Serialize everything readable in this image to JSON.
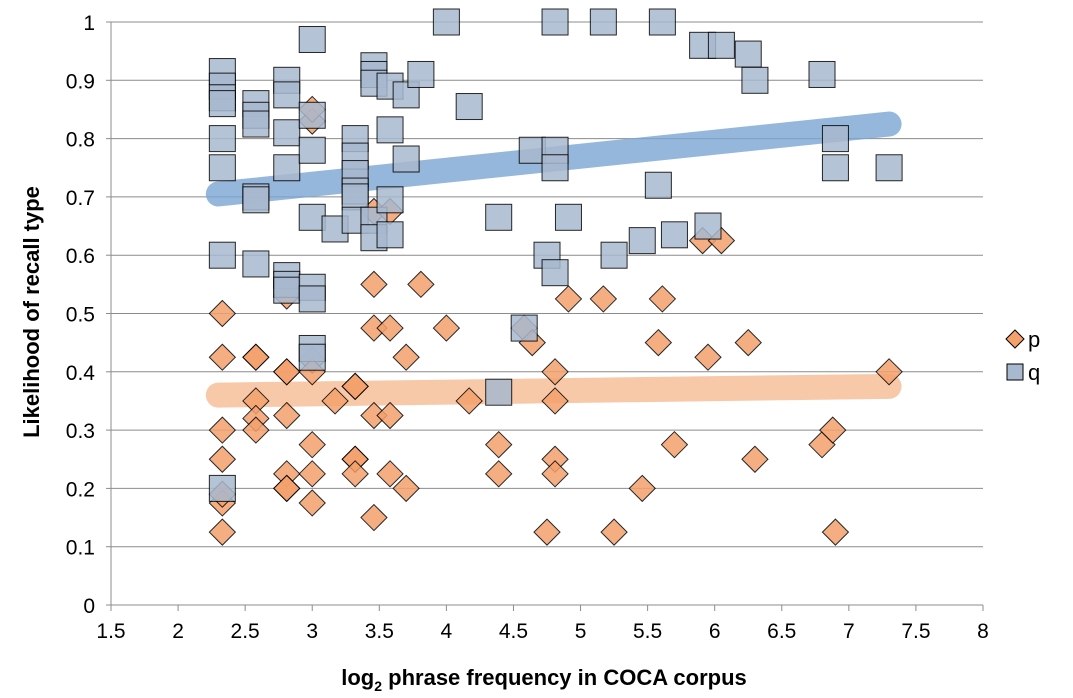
{
  "chart_data": {
    "type": "scatter",
    "title": "",
    "xlabel_main": "log",
    "xlabel_sub": "2",
    "xlabel_rest": " phrase frequency in COCA corpus",
    "ylabel": "Likelihood of recall type",
    "xlim": [
      1.5,
      8
    ],
    "ylim": [
      0,
      1
    ],
    "xticks": [
      1.5,
      2,
      2.5,
      3,
      3.5,
      4,
      4.5,
      5,
      5.5,
      6,
      6.5,
      7,
      7.5,
      8
    ],
    "yticks": [
      0,
      0.1,
      0.2,
      0.3,
      0.4,
      0.5,
      0.6,
      0.7,
      0.8,
      0.9,
      1
    ],
    "grid": "horizontal",
    "legend_position": "right",
    "series": [
      {
        "name": "p",
        "marker": "diamond",
        "color": "#f4a16c",
        "stroke": "#000000",
        "trend": {
          "x": [
            2.3,
            7.3
          ],
          "y": [
            0.36,
            0.375
          ],
          "color": "#f7c09a"
        },
        "points": [
          [
            2.33,
            0.5
          ],
          [
            2.33,
            0.425
          ],
          [
            2.33,
            0.3
          ],
          [
            2.33,
            0.25
          ],
          [
            2.33,
            0.175
          ],
          [
            2.33,
            0.125
          ],
          [
            2.33,
            0.19
          ],
          [
            2.58,
            0.425
          ],
          [
            2.58,
            0.425
          ],
          [
            2.58,
            0.35
          ],
          [
            2.58,
            0.32
          ],
          [
            2.58,
            0.3
          ],
          [
            2.81,
            0.53
          ],
          [
            2.81,
            0.4
          ],
          [
            2.81,
            0.4
          ],
          [
            2.81,
            0.325
          ],
          [
            2.81,
            0.225
          ],
          [
            2.81,
            0.2
          ],
          [
            2.81,
            0.2
          ],
          [
            3.0,
            0.83
          ],
          [
            3.0,
            0.85
          ],
          [
            3.0,
            0.42
          ],
          [
            3.0,
            0.4
          ],
          [
            3.0,
            0.275
          ],
          [
            3.0,
            0.225
          ],
          [
            3.0,
            0.175
          ],
          [
            3.17,
            0.35
          ],
          [
            3.32,
            0.375
          ],
          [
            3.32,
            0.375
          ],
          [
            3.32,
            0.25
          ],
          [
            3.32,
            0.25
          ],
          [
            3.32,
            0.225
          ],
          [
            3.46,
            0.675
          ],
          [
            3.46,
            0.55
          ],
          [
            3.46,
            0.475
          ],
          [
            3.46,
            0.325
          ],
          [
            3.46,
            0.15
          ],
          [
            3.58,
            0.675
          ],
          [
            3.58,
            0.475
          ],
          [
            3.58,
            0.325
          ],
          [
            3.58,
            0.225
          ],
          [
            3.7,
            0.425
          ],
          [
            3.7,
            0.2
          ],
          [
            3.81,
            0.55
          ],
          [
            4.0,
            0.475
          ],
          [
            4.17,
            0.35
          ],
          [
            4.39,
            0.275
          ],
          [
            4.39,
            0.225
          ],
          [
            4.58,
            0.475
          ],
          [
            4.64,
            0.45
          ],
          [
            4.75,
            0.125
          ],
          [
            4.81,
            0.4
          ],
          [
            4.81,
            0.35
          ],
          [
            4.81,
            0.25
          ],
          [
            4.81,
            0.225
          ],
          [
            4.91,
            0.525
          ],
          [
            5.17,
            0.525
          ],
          [
            5.25,
            0.125
          ],
          [
            5.46,
            0.2
          ],
          [
            5.58,
            0.45
          ],
          [
            5.61,
            0.525
          ],
          [
            5.7,
            0.275
          ],
          [
            5.91,
            0.625
          ],
          [
            5.95,
            0.425
          ],
          [
            6.05,
            0.625
          ],
          [
            6.25,
            0.45
          ],
          [
            6.3,
            0.25
          ],
          [
            6.8,
            0.275
          ],
          [
            6.88,
            0.3
          ],
          [
            6.9,
            0.125
          ],
          [
            7.3,
            0.4
          ]
        ]
      },
      {
        "name": "q",
        "marker": "square",
        "color": "#a8b9cf",
        "stroke": "#000000",
        "trend": {
          "x": [
            2.3,
            7.3
          ],
          "y": [
            0.705,
            0.825
          ],
          "color": "#7ba6d4"
        },
        "points": [
          [
            2.33,
            0.915
          ],
          [
            2.33,
            0.89
          ],
          [
            2.33,
            0.87
          ],
          [
            2.33,
            0.86
          ],
          [
            2.33,
            0.8
          ],
          [
            2.33,
            0.75
          ],
          [
            2.33,
            0.6
          ],
          [
            2.33,
            0.2
          ],
          [
            2.58,
            0.86
          ],
          [
            2.58,
            0.84
          ],
          [
            2.58,
            0.825
          ],
          [
            2.58,
            0.7
          ],
          [
            2.58,
            0.695
          ],
          [
            2.58,
            0.585
          ],
          [
            2.81,
            0.9
          ],
          [
            2.81,
            0.875
          ],
          [
            2.81,
            0.81
          ],
          [
            2.81,
            0.75
          ],
          [
            2.81,
            0.565
          ],
          [
            2.81,
            0.55
          ],
          [
            2.81,
            0.54
          ],
          [
            3.0,
            0.97
          ],
          [
            3.0,
            0.84
          ],
          [
            3.0,
            0.78
          ],
          [
            3.0,
            0.665
          ],
          [
            3.0,
            0.545
          ],
          [
            3.0,
            0.525
          ],
          [
            3.0,
            0.44
          ],
          [
            3.0,
            0.425
          ],
          [
            3.17,
            0.645
          ],
          [
            3.32,
            0.8
          ],
          [
            3.32,
            0.77
          ],
          [
            3.32,
            0.74
          ],
          [
            3.32,
            0.71
          ],
          [
            3.32,
            0.7
          ],
          [
            3.32,
            0.66
          ],
          [
            3.46,
            0.925
          ],
          [
            3.46,
            0.91
          ],
          [
            3.46,
            0.895
          ],
          [
            3.46,
            0.66
          ],
          [
            3.46,
            0.63
          ],
          [
            3.58,
            0.89
          ],
          [
            3.58,
            0.815
          ],
          [
            3.58,
            0.695
          ],
          [
            3.58,
            0.635
          ],
          [
            3.7,
            0.875
          ],
          [
            3.7,
            0.765
          ],
          [
            3.81,
            0.91
          ],
          [
            4.0,
            1.0
          ],
          [
            4.17,
            0.855
          ],
          [
            4.39,
            0.665
          ],
          [
            4.39,
            0.365
          ],
          [
            4.58,
            0.475
          ],
          [
            4.64,
            0.78
          ],
          [
            4.75,
            0.6
          ],
          [
            4.81,
            1.0
          ],
          [
            4.81,
            0.78
          ],
          [
            4.81,
            0.75
          ],
          [
            4.81,
            0.57
          ],
          [
            4.91,
            0.665
          ],
          [
            5.17,
            1.0
          ],
          [
            5.25,
            0.6
          ],
          [
            5.46,
            0.625
          ],
          [
            5.58,
            0.72
          ],
          [
            5.61,
            1.0
          ],
          [
            5.7,
            0.635
          ],
          [
            5.91,
            0.96
          ],
          [
            5.95,
            0.65
          ],
          [
            6.05,
            0.96
          ],
          [
            6.25,
            0.945
          ],
          [
            6.3,
            0.9
          ],
          [
            6.8,
            0.91
          ],
          [
            6.9,
            0.8
          ],
          [
            6.9,
            0.75
          ],
          [
            7.3,
            0.75
          ]
        ]
      }
    ]
  }
}
